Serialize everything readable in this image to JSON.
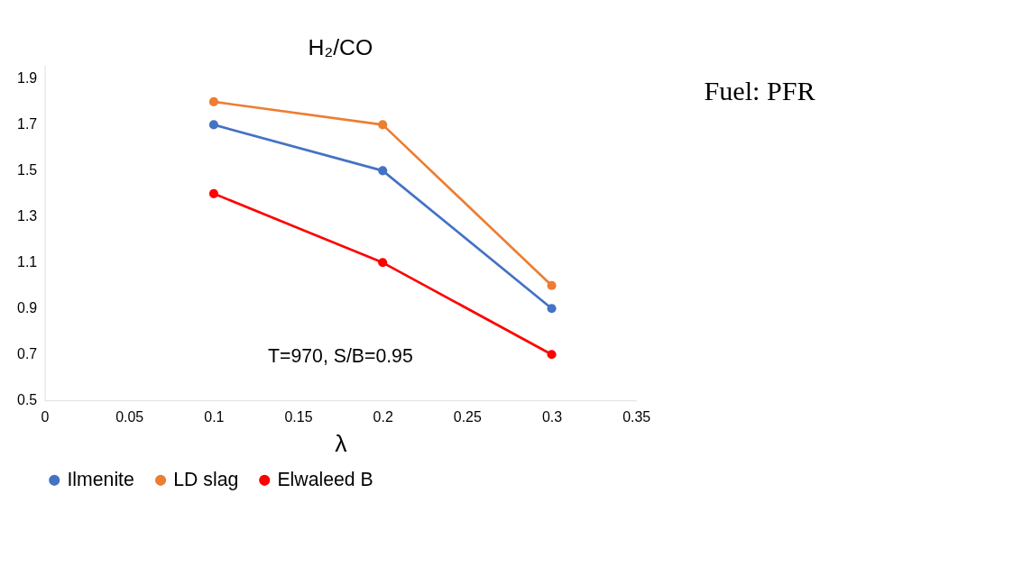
{
  "chart_data": {
    "type": "line",
    "title": "H₂/CO",
    "xlabel": "λ",
    "x": [
      0.1,
      0.2,
      0.3
    ],
    "series": [
      {
        "name": "Ilmenite",
        "color": "#4472c4",
        "values": [
          1.7,
          1.5,
          0.9
        ]
      },
      {
        "name": "LD slag",
        "color": "#ed7d31",
        "values": [
          1.8,
          1.7,
          1.0
        ]
      },
      {
        "name": "Elwaleed B",
        "color": "#ff0000",
        "values": [
          1.4,
          1.1,
          0.7
        ]
      }
    ],
    "xlim": [
      0,
      0.35
    ],
    "xticks": [
      0,
      0.05,
      0.1,
      0.15,
      0.2,
      0.25,
      0.3,
      0.35
    ],
    "ylim": [
      0.5,
      1.96
    ],
    "yticks": [
      0.5,
      0.7,
      0.9,
      1.1,
      1.3,
      1.5,
      1.7,
      1.9
    ],
    "grid": false,
    "legend": "bottom",
    "marker": "circle",
    "line_style": "solid",
    "annotations": [
      "T=970, S/B=0.95",
      "Fuel: PFR"
    ]
  }
}
